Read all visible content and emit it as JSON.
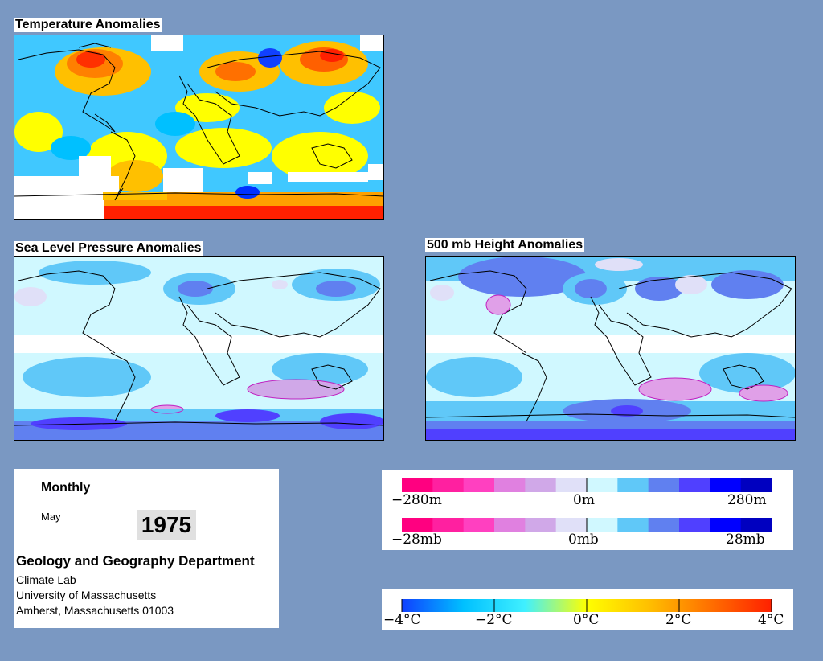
{
  "panels": {
    "temperature": {
      "title": "Temperature Anomalies"
    },
    "slp": {
      "title": "Sea Level Pressure Anomalies"
    },
    "height500": {
      "title": "500 mb Height Anomalies"
    }
  },
  "info": {
    "period": "Monthly",
    "month": "May",
    "year": "1975",
    "department": "Geology and Geography Department",
    "address_lines": [
      "Climate Lab",
      "University of Massachusetts",
      "Amherst, Massachusetts 01003"
    ]
  },
  "legends": {
    "height": {
      "min": "−280m",
      "mid": "0m",
      "max": "280m"
    },
    "pressure": {
      "min": "−28mb",
      "mid": "0mb",
      "max": "28mb"
    },
    "temperature": {
      "ticks": [
        "−4°C",
        "−2°C",
        "0°C",
        "2°C",
        "4°C"
      ]
    }
  },
  "colors": {
    "background": "#7a98c2",
    "anomaly_scale": [
      "#ff0080",
      "#ff20a0",
      "#ff40c0",
      "#e080e0",
      "#d0a8e8",
      "#e0e0f8",
      "#d0f8ff",
      "#60c8f8",
      "#6080f0",
      "#5040ff",
      "#0000ff",
      "#0000c0"
    ],
    "temp_scale": [
      "#1040ff",
      "#00c0ff",
      "#40f0ff",
      "#ffff00",
      "#ffc000",
      "#ff7000",
      "#ff2000"
    ]
  }
}
